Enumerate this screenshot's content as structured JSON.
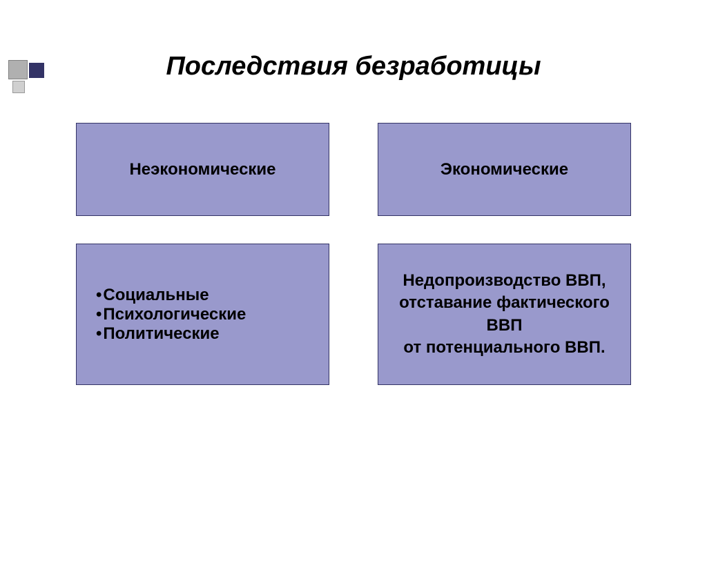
{
  "title": "Последствия безработицы",
  "boxes": {
    "header_left": "Неэкономические",
    "header_right": "Экономические",
    "detail_left_items": [
      "Социальные",
      "Психологические",
      "Политические"
    ],
    "detail_right": "Недопроизводство ВВП,\nотставание фактического ВВП\nот потенциального ВВП."
  },
  "styling": {
    "box_bg": "#9999cc",
    "box_border": "#333366",
    "page_bg": "#ffffff",
    "title_fontsize": 38,
    "box_fontsize": 24,
    "decoration_square_light": "#b0b0b0",
    "decoration_square_dark": "#333366",
    "header_box_height": 135,
    "detail_box_height": 205
  }
}
